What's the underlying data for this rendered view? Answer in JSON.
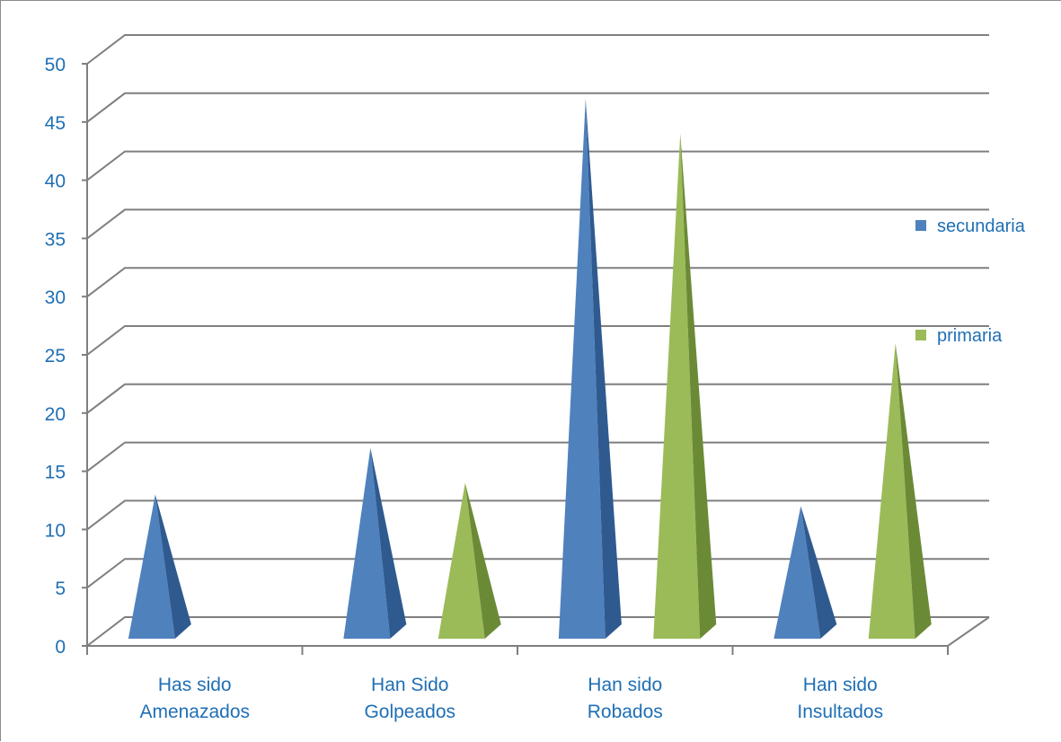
{
  "chart_data": {
    "type": "bar",
    "style": "3d-pyramid",
    "categories": [
      [
        "Has sido",
        "Amenazados"
      ],
      [
        "Han Sido",
        "Golpeados"
      ],
      [
        "Han sido",
        "Robados"
      ],
      [
        "Han sido",
        "Insultados"
      ]
    ],
    "series": [
      {
        "name": "secundaria",
        "values": [
          13,
          17,
          47,
          12
        ],
        "color": "#4f81bd",
        "shade": "#2f5a8f"
      },
      {
        "name": "primaria",
        "values": [
          0,
          14,
          44,
          26
        ],
        "color": "#9bbb59",
        "shade": "#6b8a36"
      }
    ],
    "ylim": [
      0,
      50
    ],
    "yticks": [
      "0",
      "5",
      "10",
      "15",
      "20",
      "25",
      "30",
      "35",
      "40",
      "45",
      "50"
    ],
    "grid": true,
    "legend_position": "right",
    "text_color": "#1f6fb5",
    "grid_color": "#7f7f7f"
  }
}
